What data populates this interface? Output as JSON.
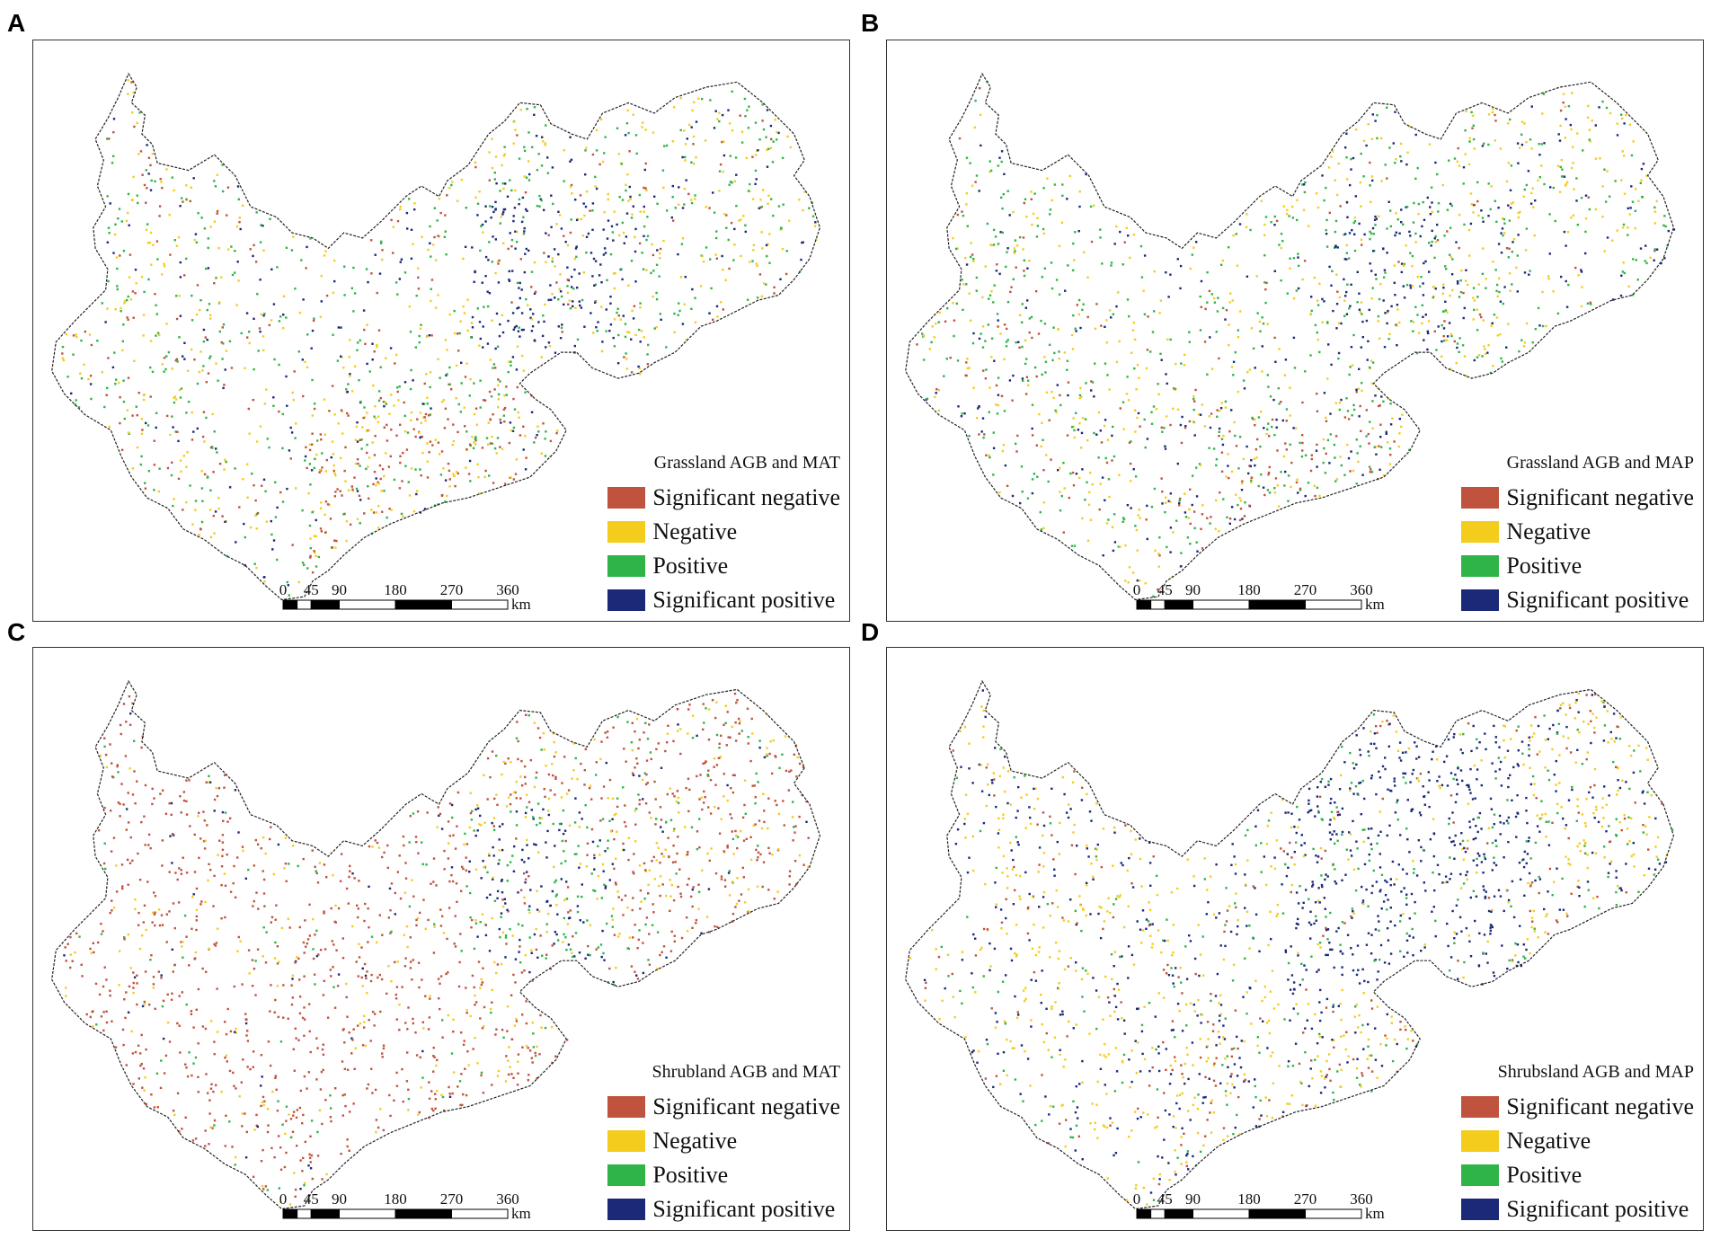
{
  "colors": {
    "significant_negative": "#c0533d",
    "negative": "#f4cc1c",
    "positive": "#2fb547",
    "significant_positive": "#1b2a78"
  },
  "legend_labels": [
    "Significant negative",
    "Negative",
    "Positive",
    "Significant positive"
  ],
  "scalebar": {
    "ticks": [
      "0",
      "45",
      "90",
      "180",
      "270",
      "360"
    ],
    "unit": "km"
  },
  "panels": [
    {
      "letter": "A",
      "legend_title": "Grassland AGB and MAT",
      "dominant": "mixed_grass_mat"
    },
    {
      "letter": "B",
      "legend_title": "Grassland AGB and MAP",
      "dominant": "mixed_grass_map"
    },
    {
      "letter": "C",
      "legend_title": "Shrubland AGB and MAT",
      "dominant": "red_shrub_mat"
    },
    {
      "letter": "D",
      "legend_title": "Shrubsland AGB and MAP",
      "dominant": "blue_shrub_map"
    }
  ]
}
